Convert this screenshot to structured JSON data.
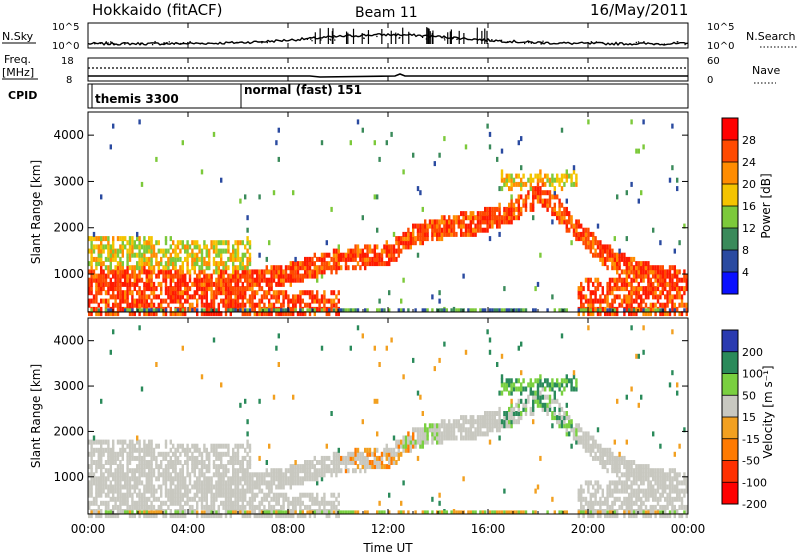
{
  "header": {
    "station": "Hokkaido (fitACF)",
    "beam": "Beam 11",
    "date": "16/May/2011"
  },
  "labels": {
    "nsky": "N.Sky",
    "nsearch": "N.Search",
    "freq": "Freq.",
    "freq_unit": "[MHz]",
    "nave": "Nave",
    "cpid": "CPID"
  },
  "chart_data": [
    {
      "type": "line",
      "name": "noise",
      "left_ticks": [
        "10^5",
        "10^0"
      ],
      "right_ticks": [
        "10^5",
        "10^0"
      ]
    },
    {
      "type": "line",
      "name": "frequency",
      "left_ticks": [
        "18",
        "8"
      ],
      "right_ticks": [
        "60",
        "0"
      ]
    },
    {
      "type": "table",
      "name": "cpid",
      "entries": [
        {
          "start": "00:00",
          "label": "themis 3300"
        },
        {
          "start": "06:05",
          "label": "normal (fast) 151"
        }
      ]
    },
    {
      "type": "heatmap",
      "name": "power",
      "ylabel": "Slant Range [km]",
      "ylim": [
        180,
        4500
      ],
      "yticks": [
        "1000",
        "2000",
        "3000",
        "4000"
      ],
      "colorbar_label": "Power [dB]",
      "colorbar_ticks": [
        "28",
        "24",
        "20",
        "16",
        "12",
        "8",
        "4"
      ],
      "colorbar_colors": [
        "#ff0000",
        "#ff4a00",
        "#ff8c00",
        "#f4c400",
        "#7cc93a",
        "#3a8a5a",
        "#2a4aa0",
        "#0a10ff"
      ]
    },
    {
      "type": "heatmap",
      "name": "velocity",
      "ylabel": "Slant Range [km]",
      "ylim": [
        180,
        4500
      ],
      "yticks": [
        "1000",
        "2000",
        "3000",
        "4000"
      ],
      "colorbar_label": "Velocity [m s⁻¹]",
      "colorbar_ticks": [
        "200",
        "100",
        "50",
        "15",
        "-15",
        "-50",
        "-100",
        "-200"
      ],
      "colorbar_colors": [
        "#2a3ab0",
        "#2a8a5a",
        "#7ad040",
        "#c8c8c0",
        "#f2a020",
        "#ff7a00",
        "#ff3000",
        "#ff0000"
      ]
    }
  ],
  "xaxis": {
    "label": "Time UT",
    "ticks": [
      "00:00",
      "04:00",
      "08:00",
      "12:00",
      "16:00",
      "20:00",
      "00:00"
    ]
  },
  "colors": {
    "ground": "#c8c8c0",
    "pow_low": "#2a4aa0",
    "pow_mid": "#7cc93a",
    "pow_hi": "#ff8c00",
    "pow_max": "#ff1a00"
  }
}
